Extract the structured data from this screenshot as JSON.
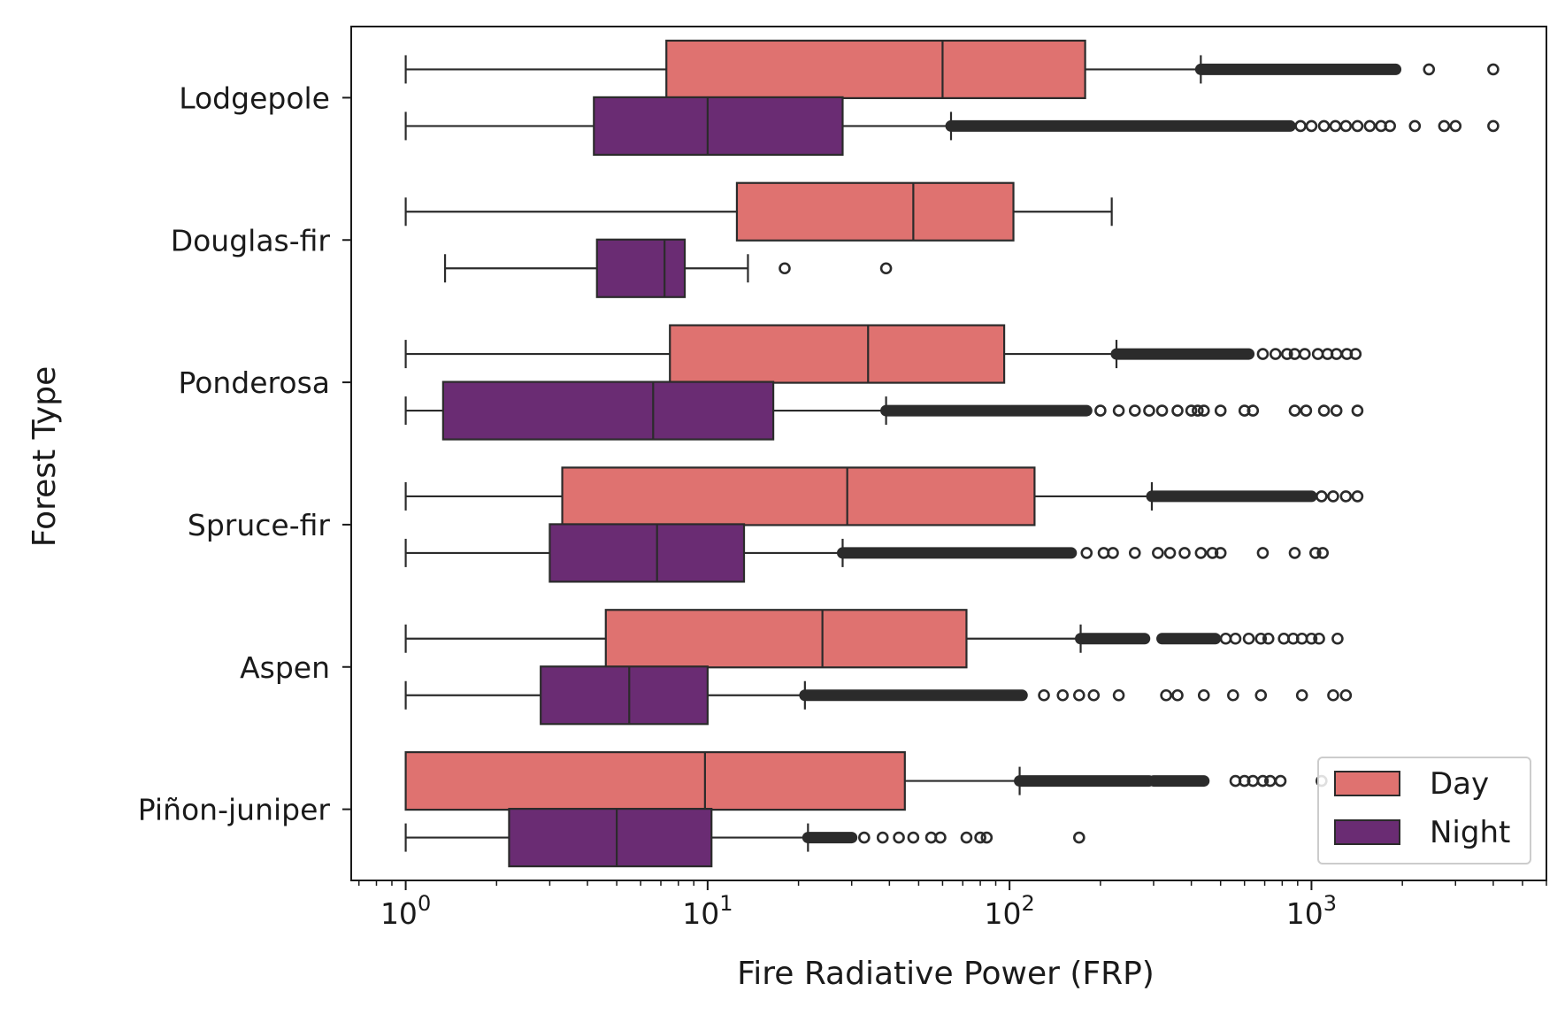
{
  "chart_data": {
    "type": "boxplot",
    "orientation": "horizontal",
    "xlabel": "Fire Radiative Power (FRP)",
    "ylabel": "Forest Type",
    "xscale": "log",
    "xlim": [
      0.66,
      6000
    ],
    "xticks": [
      {
        "value": 1,
        "base": "10",
        "exp": "0"
      },
      {
        "value": 10,
        "base": "10",
        "exp": "1"
      },
      {
        "value": 100,
        "base": "10",
        "exp": "2"
      },
      {
        "value": 1000,
        "base": "10",
        "exp": "3"
      }
    ],
    "categories": [
      "Lodgepole",
      "Douglas-fir",
      "Ponderosa",
      "Spruce-fir",
      "Aspen",
      "Piñon-juniper"
    ],
    "legend": {
      "position": "lower right",
      "entries": [
        "Day",
        "Night"
      ]
    },
    "grid": false,
    "series": [
      {
        "name": "Day",
        "color": "#df7270",
        "boxes": [
          {
            "whislo": 1.0,
            "q1": 7.3,
            "med": 60,
            "q3": 178,
            "whishi": 430,
            "dense_outliers": [
              430,
              1900
            ],
            "outliers": [
              2450,
              4000
            ]
          },
          {
            "whislo": 1.0,
            "q1": 12.5,
            "med": 48,
            "q3": 103,
            "whishi": 218,
            "dense_outliers": [],
            "outliers": []
          },
          {
            "whislo": 1.0,
            "q1": 7.5,
            "med": 34,
            "q3": 96,
            "whishi": 226,
            "dense_outliers": [
              226,
              620
            ],
            "outliers": [
              690,
              760,
              830,
              880,
              950,
              1050,
              1130,
              1210,
              1310,
              1400
            ]
          },
          {
            "whislo": 1.0,
            "q1": 3.3,
            "med": 29,
            "q3": 121,
            "whishi": 296,
            "dense_outliers": [
              296,
              1000
            ],
            "outliers": [
              1080,
              1180,
              1300,
              1420
            ]
          },
          {
            "whislo": 1.0,
            "q1": 4.6,
            "med": 24,
            "q3": 72,
            "whishi": 172,
            "dense_outliers": [
              172,
              280,
              320,
              480
            ],
            "outliers": [
              520,
              560,
              620,
              680,
              720,
              810,
              870,
              930,
              1000,
              1060,
              1220
            ]
          },
          {
            "whislo": 1.0,
            "q1": 1.0,
            "med": 9.8,
            "q3": 45,
            "whishi": 108,
            "dense_outliers": [
              108,
              290,
              300,
              440
            ],
            "outliers": [
              560,
              600,
              640,
              690,
              730,
              790,
              1080
            ]
          }
        ]
      },
      {
        "name": "Night",
        "color": "#6a2c73",
        "boxes": [
          {
            "whislo": 1.0,
            "q1": 4.2,
            "med": 10,
            "q3": 28,
            "whishi": 64,
            "dense_outliers": [
              64,
              850
            ],
            "outliers": [
              920,
              1000,
              1100,
              1200,
              1300,
              1420,
              1560,
              1700,
              1820,
              2200,
              2750,
              3000,
              4000
            ]
          },
          {
            "whislo": 1.35,
            "q1": 4.3,
            "med": 7.2,
            "q3": 8.4,
            "whishi": 13.6,
            "dense_outliers": [],
            "outliers": [
              18,
              39
            ]
          },
          {
            "whislo": 1.0,
            "q1": 1.33,
            "med": 6.6,
            "q3": 16.5,
            "whishi": 39,
            "dense_outliers": [
              39,
              180
            ],
            "outliers": [
              200,
              230,
              260,
              290,
              320,
              360,
              400,
              420,
              440,
              500,
              600,
              640,
              880,
              960,
              1100,
              1210,
              1420
            ]
          },
          {
            "whislo": 1.0,
            "q1": 3.0,
            "med": 6.8,
            "q3": 13.2,
            "whishi": 28,
            "dense_outliers": [
              28,
              160
            ],
            "outliers": [
              180,
              205,
              220,
              260,
              310,
              340,
              380,
              430,
              470,
              500,
              690,
              880,
              1030,
              1090
            ]
          },
          {
            "whislo": 1.0,
            "q1": 2.8,
            "med": 5.5,
            "q3": 10,
            "whishi": 21,
            "dense_outliers": [
              21,
              110
            ],
            "outliers": [
              130,
              150,
              170,
              190,
              230,
              330,
              360,
              440,
              550,
              680,
              930,
              1180,
              1300
            ]
          },
          {
            "whislo": 1.0,
            "q1": 2.2,
            "med": 5.0,
            "q3": 10.3,
            "whishi": 21.5,
            "dense_outliers": [
              21.5,
              30
            ],
            "outliers": [
              33,
              38,
              43,
              48,
              55,
              59,
              72,
              80,
              84,
              170
            ]
          }
        ]
      }
    ]
  }
}
